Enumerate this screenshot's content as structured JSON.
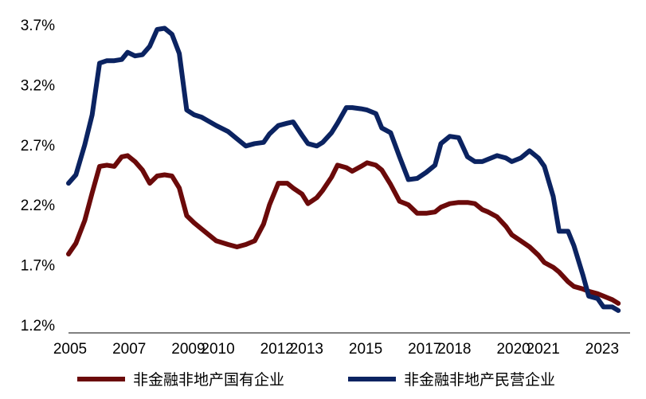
{
  "chart_data": {
    "type": "line",
    "title": "",
    "xlabel": "",
    "ylabel": "",
    "grid": false,
    "legend_position": "bottom",
    "ylim": [
      1.2,
      3.7
    ],
    "xlim": [
      2005,
      2024
    ],
    "y_ticks": [
      1.2,
      1.7,
      2.2,
      2.7,
      3.2,
      3.7
    ],
    "y_tick_labels": [
      "1.2%",
      "1.7%",
      "2.2%",
      "2.7%",
      "3.2%",
      "3.7%"
    ],
    "x_ticks": [
      2005,
      2007,
      2009,
      2010,
      2012,
      2013,
      2015,
      2017,
      2018,
      2020,
      2021,
      2023
    ],
    "x_tick_labels": [
      "2005",
      "2007",
      "2009",
      "2010",
      "2012",
      "2013",
      "2015",
      "2017",
      "2018",
      "2020",
      "2021",
      "2023"
    ],
    "series": [
      {
        "name": "非金融非地产国有企业",
        "color": "#6b0a0a",
        "x": [
          2005.0,
          2005.25,
          2005.55,
          2005.8,
          2006.05,
          2006.3,
          2006.55,
          2006.8,
          2007.0,
          2007.25,
          2007.5,
          2007.75,
          2008.0,
          2008.25,
          2008.5,
          2008.75,
          2009.0,
          2009.25,
          2009.5,
          2010.0,
          2010.4,
          2010.7,
          2011.0,
          2011.3,
          2011.6,
          2011.8,
          2012.1,
          2012.4,
          2012.6,
          2012.9,
          2013.1,
          2013.4,
          2013.6,
          2013.9,
          2014.1,
          2014.4,
          2014.6,
          2014.9,
          2015.1,
          2015.4,
          2015.6,
          2015.9,
          2016.2,
          2016.5,
          2016.8,
          2017.1,
          2017.4,
          2017.6,
          2017.9,
          2018.2,
          2018.5,
          2018.75,
          2019.0,
          2019.2,
          2019.5,
          2019.8,
          2020.0,
          2020.3,
          2020.6,
          2020.9,
          2021.1,
          2021.4,
          2021.6,
          2021.9,
          2022.1,
          2022.4,
          2022.6,
          2022.9,
          2023.1,
          2023.4,
          2023.6
        ],
        "y": [
          1.79,
          1.88,
          2.07,
          2.3,
          2.52,
          2.53,
          2.52,
          2.6,
          2.61,
          2.56,
          2.49,
          2.38,
          2.44,
          2.45,
          2.44,
          2.34,
          2.11,
          2.05,
          2.0,
          1.9,
          1.87,
          1.85,
          1.87,
          1.9,
          2.04,
          2.2,
          2.38,
          2.38,
          2.34,
          2.29,
          2.21,
          2.26,
          2.32,
          2.43,
          2.53,
          2.51,
          2.48,
          2.52,
          2.55,
          2.53,
          2.49,
          2.37,
          2.23,
          2.2,
          2.13,
          2.13,
          2.14,
          2.18,
          2.21,
          2.22,
          2.22,
          2.21,
          2.16,
          2.14,
          2.1,
          2.02,
          1.95,
          1.9,
          1.85,
          1.78,
          1.72,
          1.68,
          1.64,
          1.56,
          1.52,
          1.5,
          1.48,
          1.46,
          1.44,
          1.41,
          1.38
        ]
      },
      {
        "name": "非金融非地产民营企业",
        "color": "#0b2361",
        "x": [
          2005.0,
          2005.25,
          2005.55,
          2005.8,
          2006.05,
          2006.3,
          2006.55,
          2006.8,
          2007.0,
          2007.25,
          2007.5,
          2007.75,
          2008.0,
          2008.25,
          2008.5,
          2008.75,
          2009.0,
          2009.25,
          2009.5,
          2010.0,
          2010.4,
          2010.7,
          2011.0,
          2011.3,
          2011.6,
          2011.8,
          2012.1,
          2012.4,
          2012.6,
          2012.9,
          2013.1,
          2013.4,
          2013.6,
          2013.9,
          2014.1,
          2014.4,
          2014.6,
          2014.9,
          2015.1,
          2015.4,
          2015.6,
          2015.9,
          2016.2,
          2016.5,
          2016.8,
          2017.1,
          2017.4,
          2017.6,
          2017.9,
          2018.2,
          2018.5,
          2018.75,
          2019.0,
          2019.2,
          2019.5,
          2019.8,
          2020.0,
          2020.3,
          2020.6,
          2020.9,
          2021.1,
          2021.4,
          2021.6,
          2021.9,
          2022.1,
          2022.4,
          2022.6,
          2022.9,
          2023.1,
          2023.4,
          2023.6
        ],
        "y": [
          2.38,
          2.45,
          2.7,
          2.95,
          3.38,
          3.4,
          3.4,
          3.41,
          3.47,
          3.44,
          3.45,
          3.52,
          3.66,
          3.67,
          3.62,
          3.46,
          2.99,
          2.95,
          2.93,
          2.86,
          2.81,
          2.75,
          2.69,
          2.71,
          2.72,
          2.79,
          2.86,
          2.88,
          2.89,
          2.78,
          2.71,
          2.69,
          2.72,
          2.8,
          2.88,
          3.01,
          3.01,
          3.0,
          2.99,
          2.96,
          2.84,
          2.8,
          2.6,
          2.41,
          2.42,
          2.47,
          2.53,
          2.71,
          2.77,
          2.76,
          2.6,
          2.56,
          2.56,
          2.58,
          2.61,
          2.59,
          2.56,
          2.59,
          2.65,
          2.59,
          2.52,
          2.27,
          1.98,
          1.98,
          1.86,
          1.62,
          1.44,
          1.42,
          1.35,
          1.35,
          1.32
        ]
      }
    ]
  }
}
